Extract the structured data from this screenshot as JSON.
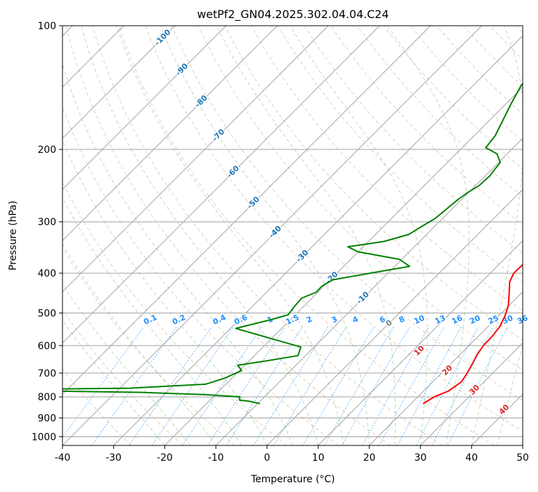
{
  "chart_data": {
    "type": "line",
    "title": "wetPf2_GN04.2025.302.04.04.C24",
    "xlabel": "Temperature (°C)",
    "ylabel": "Pressure (hPa)",
    "xlim": [
      -40,
      50
    ],
    "ylim": [
      1050,
      100
    ],
    "y_scale": "log",
    "x_ticks": [
      "-40",
      "-30",
      "-20",
      "-10",
      "0",
      "10",
      "20",
      "30",
      "40",
      "50"
    ],
    "y_ticks": [
      "100",
      "200",
      "300",
      "400",
      "500",
      "600",
      "700",
      "800",
      "900",
      "1000"
    ],
    "grid": true,
    "colors": {
      "temperature": "#ff0000",
      "dewpoint": "#008000",
      "isotherm_labels": "#1f77b4",
      "mixing_ratio": "#1e90ff",
      "moist_adiabat_labels": "#d62728",
      "zero_label": "#808080"
    },
    "series": [
      {
        "id": "temperature",
        "points": [
          {
            "t": 22.4,
            "p": 830
          },
          {
            "t": 23.2,
            "p": 800
          },
          {
            "t": 24.8,
            "p": 775
          },
          {
            "t": 25.6,
            "p": 735
          },
          {
            "t": 25.0,
            "p": 700
          },
          {
            "t": 24.2,
            "p": 665
          },
          {
            "t": 23.3,
            "p": 630
          },
          {
            "t": 22.8,
            "p": 600
          },
          {
            "t": 22.7,
            "p": 570
          },
          {
            "t": 22.3,
            "p": 540
          },
          {
            "t": 21.3,
            "p": 510
          },
          {
            "t": 19.9,
            "p": 480
          },
          {
            "t": 17.8,
            "p": 450
          },
          {
            "t": 15.5,
            "p": 420
          },
          {
            "t": 14.6,
            "p": 400
          },
          {
            "t": 14.7,
            "p": 380
          },
          {
            "t": 14.7,
            "p": 360
          },
          {
            "t": 13.0,
            "p": 330
          },
          {
            "t": 10.5,
            "p": 300
          },
          {
            "t": 7.4,
            "p": 270
          },
          {
            "t": 5.3,
            "p": 250
          },
          {
            "t": 4.5,
            "p": 235
          },
          {
            "t": 3.4,
            "p": 215
          },
          {
            "t": 0.5,
            "p": 195
          },
          {
            "t": -3.5,
            "p": 178
          },
          {
            "t": -5.3,
            "p": 165
          },
          {
            "t": -6.8,
            "p": 150
          },
          {
            "t": -9.0,
            "p": 135
          },
          {
            "t": -10.5,
            "p": 125
          },
          {
            "t": -10.1,
            "p": 118
          },
          {
            "t": -8.2,
            "p": 110
          },
          {
            "t": -6.5,
            "p": 104
          },
          {
            "t": -5.3,
            "p": 100
          }
        ]
      },
      {
        "id": "dewpoint",
        "points": [
          {
            "t": -9.7,
            "p": 830
          },
          {
            "t": -12.0,
            "p": 820
          },
          {
            "t": -14.2,
            "p": 815
          },
          {
            "t": -14.8,
            "p": 800
          },
          {
            "t": -22.0,
            "p": 790
          },
          {
            "t": -35.0,
            "p": 780
          },
          {
            "t": -50.0,
            "p": 775
          },
          {
            "t": -60.0,
            "p": 770
          },
          {
            "t": -52.0,
            "p": 765
          },
          {
            "t": -38.0,
            "p": 762
          },
          {
            "t": -24.0,
            "p": 745
          },
          {
            "t": -21.4,
            "p": 720
          },
          {
            "t": -19.6,
            "p": 690
          },
          {
            "t": -21.4,
            "p": 670
          },
          {
            "t": -17.0,
            "p": 655
          },
          {
            "t": -11.5,
            "p": 635
          },
          {
            "t": -12.6,
            "p": 605
          },
          {
            "t": -20.6,
            "p": 575
          },
          {
            "t": -29.0,
            "p": 545
          },
          {
            "t": -24.0,
            "p": 520
          },
          {
            "t": -21.4,
            "p": 505
          },
          {
            "t": -21.8,
            "p": 480
          },
          {
            "t": -22.0,
            "p": 460
          },
          {
            "t": -20.3,
            "p": 445
          },
          {
            "t": -20.4,
            "p": 430
          },
          {
            "t": -19.5,
            "p": 415
          },
          {
            "t": -11.4,
            "p": 395
          },
          {
            "t": -7.1,
            "p": 385
          },
          {
            "t": -10.5,
            "p": 370
          },
          {
            "t": -20.0,
            "p": 355
          },
          {
            "t": -23.0,
            "p": 345
          },
          {
            "t": -17.0,
            "p": 335
          },
          {
            "t": -13.5,
            "p": 322
          },
          {
            "t": -12.3,
            "p": 305
          },
          {
            "t": -11.5,
            "p": 295
          },
          {
            "t": -11.1,
            "p": 280
          },
          {
            "t": -10.7,
            "p": 265
          },
          {
            "t": -10.2,
            "p": 255
          },
          {
            "t": -9.3,
            "p": 245
          },
          {
            "t": -9.1,
            "p": 232
          },
          {
            "t": -9.7,
            "p": 215
          },
          {
            "t": -12.0,
            "p": 205
          },
          {
            "t": -15.4,
            "p": 198
          },
          {
            "t": -15.9,
            "p": 185
          },
          {
            "t": -17.6,
            "p": 168
          },
          {
            "t": -19.0,
            "p": 155
          },
          {
            "t": -20.6,
            "p": 140
          },
          {
            "t": -21.1,
            "p": 125
          },
          {
            "t": -19.5,
            "p": 115
          },
          {
            "t": -16.5,
            "p": 107
          },
          {
            "t": -13.2,
            "p": 102
          },
          {
            "t": -12.5,
            "p": 100
          }
        ]
      }
    ],
    "isotherm_labels": [
      {
        "text": "-100",
        "t": -100,
        "p": 107
      },
      {
        "text": "-90",
        "t": -90,
        "p": 128
      },
      {
        "text": "-80",
        "t": -80,
        "p": 153
      },
      {
        "text": "-70",
        "t": -70,
        "p": 185
      },
      {
        "text": "-60",
        "t": -60,
        "p": 227
      },
      {
        "text": "-50",
        "t": -50,
        "p": 270
      },
      {
        "text": "-40",
        "t": -40,
        "p": 318
      },
      {
        "text": "-30",
        "t": -30,
        "p": 364
      },
      {
        "text": "-20",
        "t": -20,
        "p": 411
      },
      {
        "text": "-10",
        "t": -10,
        "p": 460
      }
    ],
    "mixing_ratio_labels": [
      {
        "text": "0.1",
        "t": -22.8
      },
      {
        "text": "0.2",
        "t": -17.2
      },
      {
        "text": "0.4",
        "t": -9.3
      },
      {
        "text": "0.6",
        "t": -5.1
      },
      {
        "text": "1",
        "t": 0.6
      },
      {
        "text": "1.5",
        "t": 5.0
      },
      {
        "text": "2",
        "t": 8.3
      },
      {
        "text": "3",
        "t": 13.2
      },
      {
        "text": "4",
        "t": 17.3
      },
      {
        "text": "6",
        "t": 22.6
      },
      {
        "text": "8",
        "t": 26.4
      },
      {
        "text": "10",
        "t": 29.8
      },
      {
        "text": "13",
        "t": 33.9
      },
      {
        "text": "16",
        "t": 37.2
      },
      {
        "text": "20",
        "t": 40.7
      },
      {
        "text": "25",
        "t": 44.3
      },
      {
        "text": "30",
        "t": 47.1
      },
      {
        "text": "36",
        "t": 50.0
      }
    ],
    "moist_adiabat_labels": [
      {
        "text": "0",
        "t": 23.9,
        "p": 530,
        "kind": "zero"
      },
      {
        "text": "10",
        "t": 29.8,
        "p": 618,
        "kind": "moist"
      },
      {
        "text": "20",
        "t": 35.3,
        "p": 690,
        "kind": "moist"
      },
      {
        "text": "30",
        "t": 40.6,
        "p": 770,
        "kind": "moist"
      },
      {
        "text": "40",
        "t": 46.4,
        "p": 860,
        "kind": "moist"
      }
    ]
  }
}
